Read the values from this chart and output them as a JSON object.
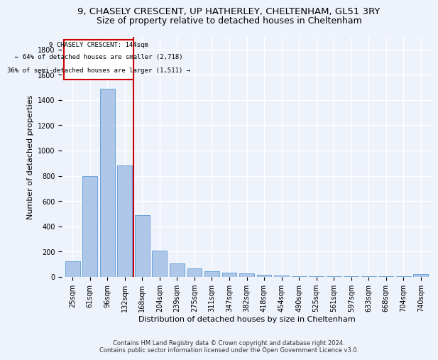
{
  "title_line1": "9, CHASELY CRESCENT, UP HATHERLEY, CHELTENHAM, GL51 3RY",
  "title_line2": "Size of property relative to detached houses in Cheltenham",
  "xlabel": "Distribution of detached houses by size in Cheltenham",
  "ylabel": "Number of detached properties",
  "categories": [
    "25sqm",
    "61sqm",
    "96sqm",
    "132sqm",
    "168sqm",
    "204sqm",
    "239sqm",
    "275sqm",
    "311sqm",
    "347sqm",
    "382sqm",
    "418sqm",
    "454sqm",
    "490sqm",
    "525sqm",
    "561sqm",
    "597sqm",
    "633sqm",
    "668sqm",
    "704sqm",
    "740sqm"
  ],
  "values": [
    125,
    800,
    1490,
    880,
    490,
    205,
    105,
    65,
    45,
    35,
    25,
    15,
    10,
    5,
    3,
    2,
    2,
    2,
    2,
    2,
    20
  ],
  "bar_color": "#aec6e8",
  "bar_edge_color": "#5b9bd5",
  "vline_color": "#cc0000",
  "annotation_box_color": "#cc0000",
  "annotation_text_line1": "9 CHASELY CRESCENT: 144sqm",
  "annotation_text_line2": "← 64% of detached houses are smaller (2,718)",
  "annotation_text_line3": "36% of semi-detached houses are larger (1,511) →",
  "footer_line1": "Contains HM Land Registry data © Crown copyright and database right 2024.",
  "footer_line2": "Contains public sector information licensed under the Open Government Licence v3.0.",
  "ylim": [
    0,
    1900
  ],
  "yticks": [
    0,
    200,
    400,
    600,
    800,
    1000,
    1200,
    1400,
    1600,
    1800
  ],
  "background_color": "#eef2fb",
  "grid_color": "#ffffff",
  "title_fontsize": 9.5,
  "subtitle_fontsize": 9,
  "axis_label_fontsize": 8,
  "tick_fontsize": 7
}
